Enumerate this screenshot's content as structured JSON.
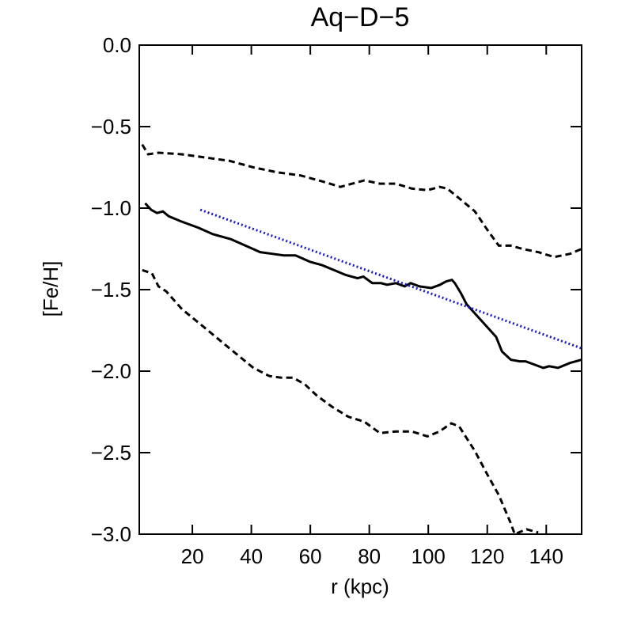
{
  "chart_data": {
    "type": "line",
    "title": "Aq−D−5",
    "x_label": "r (kpc)",
    "y_label": "[Fe/H]",
    "xlim": [
      2,
      152
    ],
    "ylim": [
      -3.0,
      0.0
    ],
    "xticks": [
      20,
      40,
      60,
      80,
      100,
      120,
      140
    ],
    "yticks": [
      {
        "value": 0,
        "label": "0.0"
      },
      {
        "value": -0.5,
        "label": "−0.5"
      },
      {
        "value": -1.0,
        "label": "−1.0"
      },
      {
        "value": -1.5,
        "label": "−1.5"
      },
      {
        "value": -2.0,
        "label": "−2.0"
      },
      {
        "value": -2.5,
        "label": "−2.5"
      },
      {
        "value": -3.0,
        "label": "−3.0"
      }
    ],
    "series": [
      {
        "color": "#000000",
        "style": "solid",
        "x": [
          4,
          6,
          8,
          10,
          12,
          16,
          22,
          27,
          33,
          38,
          43,
          47,
          51,
          55,
          60,
          64,
          68,
          72,
          76,
          78,
          81,
          84,
          86,
          89,
          92,
          94,
          97,
          101,
          104,
          106,
          108,
          109,
          111,
          113,
          116,
          119,
          123,
          125,
          128,
          131,
          133,
          136,
          139,
          141,
          144,
          148,
          152
        ],
        "values": [
          -0.97,
          -1.01,
          -1.03,
          -1.02,
          -1.05,
          -1.08,
          -1.12,
          -1.16,
          -1.19,
          -1.23,
          -1.27,
          -1.28,
          -1.29,
          -1.29,
          -1.33,
          -1.35,
          -1.38,
          -1.41,
          -1.43,
          -1.42,
          -1.46,
          -1.46,
          -1.47,
          -1.46,
          -1.48,
          -1.46,
          -1.48,
          -1.49,
          -1.47,
          -1.45,
          -1.44,
          -1.46,
          -1.52,
          -1.59,
          -1.65,
          -1.71,
          -1.79,
          -1.88,
          -1.93,
          -1.94,
          -1.94,
          -1.96,
          -1.98,
          -1.97,
          -1.98,
          -1.95,
          -1.93
        ]
      },
      {
        "color": "#000000",
        "style": "dashed",
        "x": [
          3,
          5,
          8.5,
          16.5,
          24.6,
          32.6,
          40.7,
          48.7,
          56.8,
          64.8,
          70.2,
          74.2,
          78.3,
          83.6,
          89,
          94.4,
          99.7,
          103.8,
          106.4,
          110.5,
          115.8,
          119.9,
          123.9,
          127.9,
          131.9,
          137.3,
          142.7,
          148.1,
          152
        ],
        "values": [
          -0.61,
          -0.67,
          -0.66,
          -0.67,
          -0.69,
          -0.71,
          -0.75,
          -0.78,
          -0.8,
          -0.84,
          -0.87,
          -0.85,
          -0.83,
          -0.85,
          -0.85,
          -0.88,
          -0.89,
          -0.87,
          -0.88,
          -0.94,
          -1.02,
          -1.13,
          -1.23,
          -1.23,
          -1.25,
          -1.27,
          -1.3,
          -1.28,
          -1.25
        ]
      },
      {
        "color": "#000000",
        "style": "dashed",
        "x": [
          3,
          6.3,
          8.5,
          11.1,
          16.5,
          24.6,
          32.6,
          40.7,
          46.1,
          50.1,
          54.1,
          58.1,
          62.2,
          67.5,
          72.9,
          78.3,
          83.6,
          89,
          94.4,
          99.7,
          103.8,
          107.8,
          110.5,
          115.8,
          119.9,
          123.9,
          127.9,
          129.3,
          133.3,
          137.3
        ],
        "values": [
          -1.38,
          -1.4,
          -1.48,
          -1.51,
          -1.62,
          -1.74,
          -1.86,
          -1.98,
          -2.03,
          -2.04,
          -2.04,
          -2.08,
          -2.15,
          -2.22,
          -2.28,
          -2.31,
          -2.38,
          -2.37,
          -2.37,
          -2.4,
          -2.37,
          -2.32,
          -2.34,
          -2.49,
          -2.63,
          -2.76,
          -2.93,
          -3.0,
          -2.97,
          -2.99
        ]
      },
      {
        "color": "#1a1acc",
        "style": "dotted",
        "x": [
          22.7,
          152
        ],
        "values": [
          -1.01,
          -1.86
        ]
      }
    ]
  }
}
